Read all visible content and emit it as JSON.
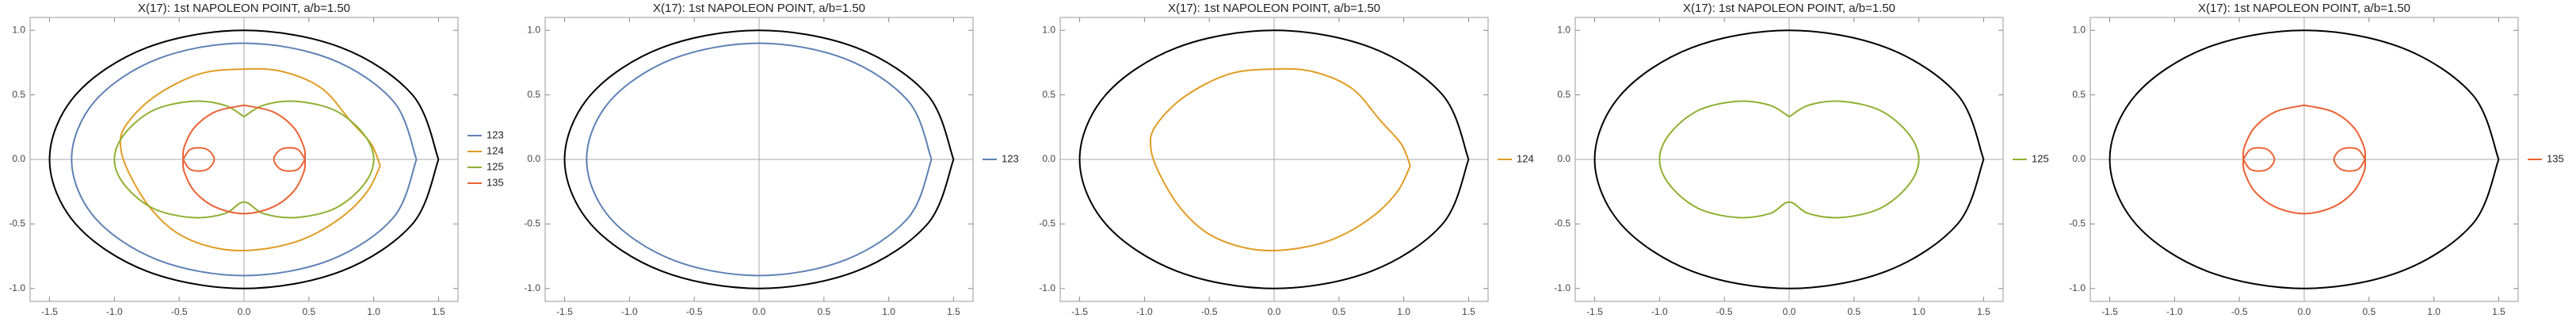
{
  "chart_data": [
    {
      "type": "line",
      "title": "X(17): 1st NAPOLEON POINT, a/b=1.50",
      "xlim": [
        -1.65,
        1.65
      ],
      "ylim": [
        -1.1,
        1.1
      ],
      "xticks": [
        -1.5,
        {
          "value": -1,
          "label": "-1.0"
        },
        -0.5,
        {
          "value": 0,
          "label": "0.0"
        },
        0.5,
        {
          "value": 1,
          "label": "1.0"
        },
        1.5
      ],
      "yticks": [
        {
          "value": -1,
          "label": "-1.0"
        },
        -0.5,
        {
          "value": 0,
          "label": "0.0"
        },
        0.5,
        {
          "value": 1,
          "label": "1.0"
        }
      ],
      "legend": "right",
      "series": [
        {
          "color": "#000000",
          "x": [
            1.5,
            1.299,
            0.75,
            0,
            -0.75,
            -1.299,
            -1.5,
            -1.299,
            -0.75,
            0,
            0.75,
            1.299,
            1.5
          ],
          "values": [
            0,
            0.5,
            0.866,
            1,
            0.866,
            0.5,
            0,
            -0.5,
            -0.866,
            -1,
            -0.866,
            -0.5,
            0
          ]
        },
        {
          "name": "123",
          "color": "#5e81b5",
          "x": [
            1.33,
            1.152,
            0.665,
            0,
            -0.665,
            -1.152,
            -1.33,
            -1.152,
            -0.665,
            0,
            0.665,
            1.152,
            1.33
          ],
          "values": [
            0,
            0.45,
            0.779,
            0.9,
            0.779,
            0.45,
            0,
            -0.45,
            -0.779,
            -0.9,
            -0.779,
            -0.45,
            0
          ]
        },
        {
          "name": "124",
          "color": "#e19c24",
          "x": [
            1.05,
            0.98,
            0.82,
            0.6,
            0.3,
            0,
            -0.35,
            -0.7,
            -0.92,
            -0.95,
            -0.88,
            -0.72,
            -0.5,
            -0.2,
            0.1,
            0.45,
            0.75,
            0.95,
            1.05
          ],
          "values": [
            -0.05,
            0.12,
            0.3,
            0.55,
            0.68,
            0.7,
            0.66,
            0.48,
            0.25,
            0.08,
            -0.12,
            -0.38,
            -0.58,
            -0.69,
            -0.7,
            -0.62,
            -0.45,
            -0.25,
            -0.05
          ]
        },
        {
          "name": "125",
          "color": "#8fb032",
          "x": [
            0,
            0.15,
            0.4,
            0.7,
            0.92,
            1.0,
            0.92,
            0.7,
            0.4,
            0.15,
            0,
            -0.15,
            -0.4,
            -0.7,
            -0.92,
            -1.0,
            -0.92,
            -0.7,
            -0.4,
            -0.15,
            0
          ],
          "values": [
            0.33,
            0.42,
            0.45,
            0.38,
            0.2,
            0,
            -0.2,
            -0.38,
            -0.45,
            -0.42,
            -0.33,
            -0.42,
            -0.45,
            -0.38,
            -0.2,
            0,
            0.2,
            0.38,
            0.45,
            0.42,
            0.33
          ]
        },
        {
          "name": "135",
          "color": "#eb6235",
          "x": [
            0,
            0.22,
            0.38,
            0.46,
            0.47,
            0.46,
            0.38,
            0.22,
            0,
            -0.22,
            -0.38,
            -0.46,
            -0.47,
            -0.46,
            -0.38,
            -0.22,
            0,
            null,
            0.47,
            0.41,
            0.29,
            0.23,
            0.29,
            0.41,
            0.47,
            null,
            -0.47,
            -0.41,
            -0.29,
            -0.23,
            -0.29,
            -0.41,
            -0.47
          ],
          "values": [
            0.42,
            0.37,
            0.25,
            0.1,
            0,
            -0.1,
            -0.25,
            -0.37,
            -0.42,
            -0.37,
            -0.25,
            -0.1,
            0,
            0.1,
            0.25,
            0.37,
            0.42,
            null,
            0,
            0.08,
            0.08,
            0,
            -0.08,
            -0.08,
            0,
            null,
            0,
            0.08,
            0.08,
            0,
            -0.08,
            -0.08,
            0
          ]
        }
      ]
    },
    {
      "type": "line",
      "title": "X(17): 1st NAPOLEON POINT, a/b=1.50",
      "xlim": [
        -1.65,
        1.65
      ],
      "ylim": [
        -1.1,
        1.1
      ],
      "xticks": [
        -1.5,
        {
          "value": -1,
          "label": "-1.0"
        },
        -0.5,
        {
          "value": 0,
          "label": "0.0"
        },
        0.5,
        {
          "value": 1,
          "label": "1.0"
        },
        1.5
      ],
      "yticks": [
        {
          "value": -1,
          "label": "-1.0"
        },
        -0.5,
        {
          "value": 0,
          "label": "0.0"
        },
        0.5,
        {
          "value": 1,
          "label": "1.0"
        }
      ],
      "legend": "right",
      "series": [
        {
          "color": "#000000",
          "x": [
            1.5,
            1.299,
            0.75,
            0,
            -0.75,
            -1.299,
            -1.5,
            -1.299,
            -0.75,
            0,
            0.75,
            1.299,
            1.5
          ],
          "values": [
            0,
            0.5,
            0.866,
            1,
            0.866,
            0.5,
            0,
            -0.5,
            -0.866,
            -1,
            -0.866,
            -0.5,
            0
          ]
        },
        {
          "name": "123",
          "color": "#5e81b5",
          "x": [
            1.33,
            1.152,
            0.665,
            0,
            -0.665,
            -1.152,
            -1.33,
            -1.152,
            -0.665,
            0,
            0.665,
            1.152,
            1.33
          ],
          "values": [
            0,
            0.45,
            0.779,
            0.9,
            0.779,
            0.45,
            0,
            -0.45,
            -0.779,
            -0.9,
            -0.779,
            -0.45,
            0
          ]
        }
      ]
    },
    {
      "type": "line",
      "title": "X(17): 1st NAPOLEON POINT, a/b=1.50",
      "xlim": [
        -1.65,
        1.65
      ],
      "ylim": [
        -1.1,
        1.1
      ],
      "xticks": [
        -1.5,
        {
          "value": -1,
          "label": "-1.0"
        },
        -0.5,
        {
          "value": 0,
          "label": "0.0"
        },
        0.5,
        {
          "value": 1,
          "label": "1.0"
        },
        1.5
      ],
      "yticks": [
        {
          "value": -1,
          "label": "-1.0"
        },
        -0.5,
        {
          "value": 0,
          "label": "0.0"
        },
        0.5,
        {
          "value": 1,
          "label": "1.0"
        }
      ],
      "legend": "right",
      "series": [
        {
          "color": "#000000",
          "x": [
            1.5,
            1.299,
            0.75,
            0,
            -0.75,
            -1.299,
            -1.5,
            -1.299,
            -0.75,
            0,
            0.75,
            1.299,
            1.5
          ],
          "values": [
            0,
            0.5,
            0.866,
            1,
            0.866,
            0.5,
            0,
            -0.5,
            -0.866,
            -1,
            -0.866,
            -0.5,
            0
          ]
        },
        {
          "name": "124",
          "color": "#e19c24",
          "x": [
            1.05,
            0.98,
            0.82,
            0.6,
            0.3,
            0,
            -0.35,
            -0.7,
            -0.92,
            -0.95,
            -0.88,
            -0.72,
            -0.5,
            -0.2,
            0.1,
            0.45,
            0.75,
            0.95,
            1.05
          ],
          "values": [
            -0.05,
            0.12,
            0.3,
            0.55,
            0.68,
            0.7,
            0.66,
            0.48,
            0.25,
            0.08,
            -0.12,
            -0.38,
            -0.58,
            -0.69,
            -0.7,
            -0.62,
            -0.45,
            -0.25,
            -0.05
          ]
        }
      ]
    },
    {
      "type": "line",
      "title": "X(17): 1st NAPOLEON POINT, a/b=1.50",
      "xlim": [
        -1.65,
        1.65
      ],
      "ylim": [
        -1.1,
        1.1
      ],
      "xticks": [
        -1.5,
        {
          "value": -1,
          "label": "-1.0"
        },
        -0.5,
        {
          "value": 0,
          "label": "0.0"
        },
        0.5,
        {
          "value": 1,
          "label": "1.0"
        },
        1.5
      ],
      "yticks": [
        {
          "value": -1,
          "label": "-1.0"
        },
        -0.5,
        {
          "value": 0,
          "label": "0.0"
        },
        0.5,
        {
          "value": 1,
          "label": "1.0"
        }
      ],
      "legend": "right",
      "series": [
        {
          "color": "#000000",
          "x": [
            1.5,
            1.299,
            0.75,
            0,
            -0.75,
            -1.299,
            -1.5,
            -1.299,
            -0.75,
            0,
            0.75,
            1.299,
            1.5
          ],
          "values": [
            0,
            0.5,
            0.866,
            1,
            0.866,
            0.5,
            0,
            -0.5,
            -0.866,
            -1,
            -0.866,
            -0.5,
            0
          ]
        },
        {
          "name": "125",
          "color": "#8fb032",
          "x": [
            0,
            0.15,
            0.4,
            0.7,
            0.92,
            1.0,
            0.92,
            0.7,
            0.4,
            0.15,
            0,
            -0.15,
            -0.4,
            -0.7,
            -0.92,
            -1.0,
            -0.92,
            -0.7,
            -0.4,
            -0.15,
            0
          ],
          "values": [
            0.33,
            0.42,
            0.45,
            0.38,
            0.2,
            0,
            -0.2,
            -0.38,
            -0.45,
            -0.42,
            -0.33,
            -0.42,
            -0.45,
            -0.38,
            -0.2,
            0,
            0.2,
            0.38,
            0.45,
            0.42,
            0.33
          ]
        }
      ]
    },
    {
      "type": "line",
      "title": "X(17): 1st NAPOLEON POINT, a/b=1.50",
      "xlim": [
        -1.65,
        1.65
      ],
      "ylim": [
        -1.1,
        1.1
      ],
      "xticks": [
        -1.5,
        {
          "value": -1,
          "label": "-1.0"
        },
        -0.5,
        {
          "value": 0,
          "label": "0.0"
        },
        0.5,
        {
          "value": 1,
          "label": "1.0"
        },
        1.5
      ],
      "yticks": [
        {
          "value": -1,
          "label": "-1.0"
        },
        -0.5,
        {
          "value": 0,
          "label": "0.0"
        },
        0.5,
        {
          "value": 1,
          "label": "1.0"
        }
      ],
      "legend": "right",
      "series": [
        {
          "color": "#000000",
          "x": [
            1.5,
            1.299,
            0.75,
            0,
            -0.75,
            -1.299,
            -1.5,
            -1.299,
            -0.75,
            0,
            0.75,
            1.299,
            1.5
          ],
          "values": [
            0,
            0.5,
            0.866,
            1,
            0.866,
            0.5,
            0,
            -0.5,
            -0.866,
            -1,
            -0.866,
            -0.5,
            0
          ]
        },
        {
          "name": "135",
          "color": "#eb6235",
          "x": [
            0,
            0.22,
            0.38,
            0.46,
            0.47,
            0.46,
            0.38,
            0.22,
            0,
            -0.22,
            -0.38,
            -0.46,
            -0.47,
            -0.46,
            -0.38,
            -0.22,
            0,
            null,
            0.47,
            0.41,
            0.29,
            0.23,
            0.29,
            0.41,
            0.47,
            null,
            -0.47,
            -0.41,
            -0.29,
            -0.23,
            -0.29,
            -0.41,
            -0.47
          ],
          "values": [
            0.42,
            0.37,
            0.25,
            0.1,
            0,
            -0.1,
            -0.25,
            -0.37,
            -0.42,
            -0.37,
            -0.25,
            -0.1,
            0,
            0.1,
            0.25,
            0.37,
            0.42,
            null,
            0,
            0.08,
            0.08,
            0,
            -0.08,
            -0.08,
            0,
            null,
            0,
            0.08,
            0.08,
            0,
            -0.08,
            -0.08,
            0
          ]
        }
      ]
    }
  ]
}
